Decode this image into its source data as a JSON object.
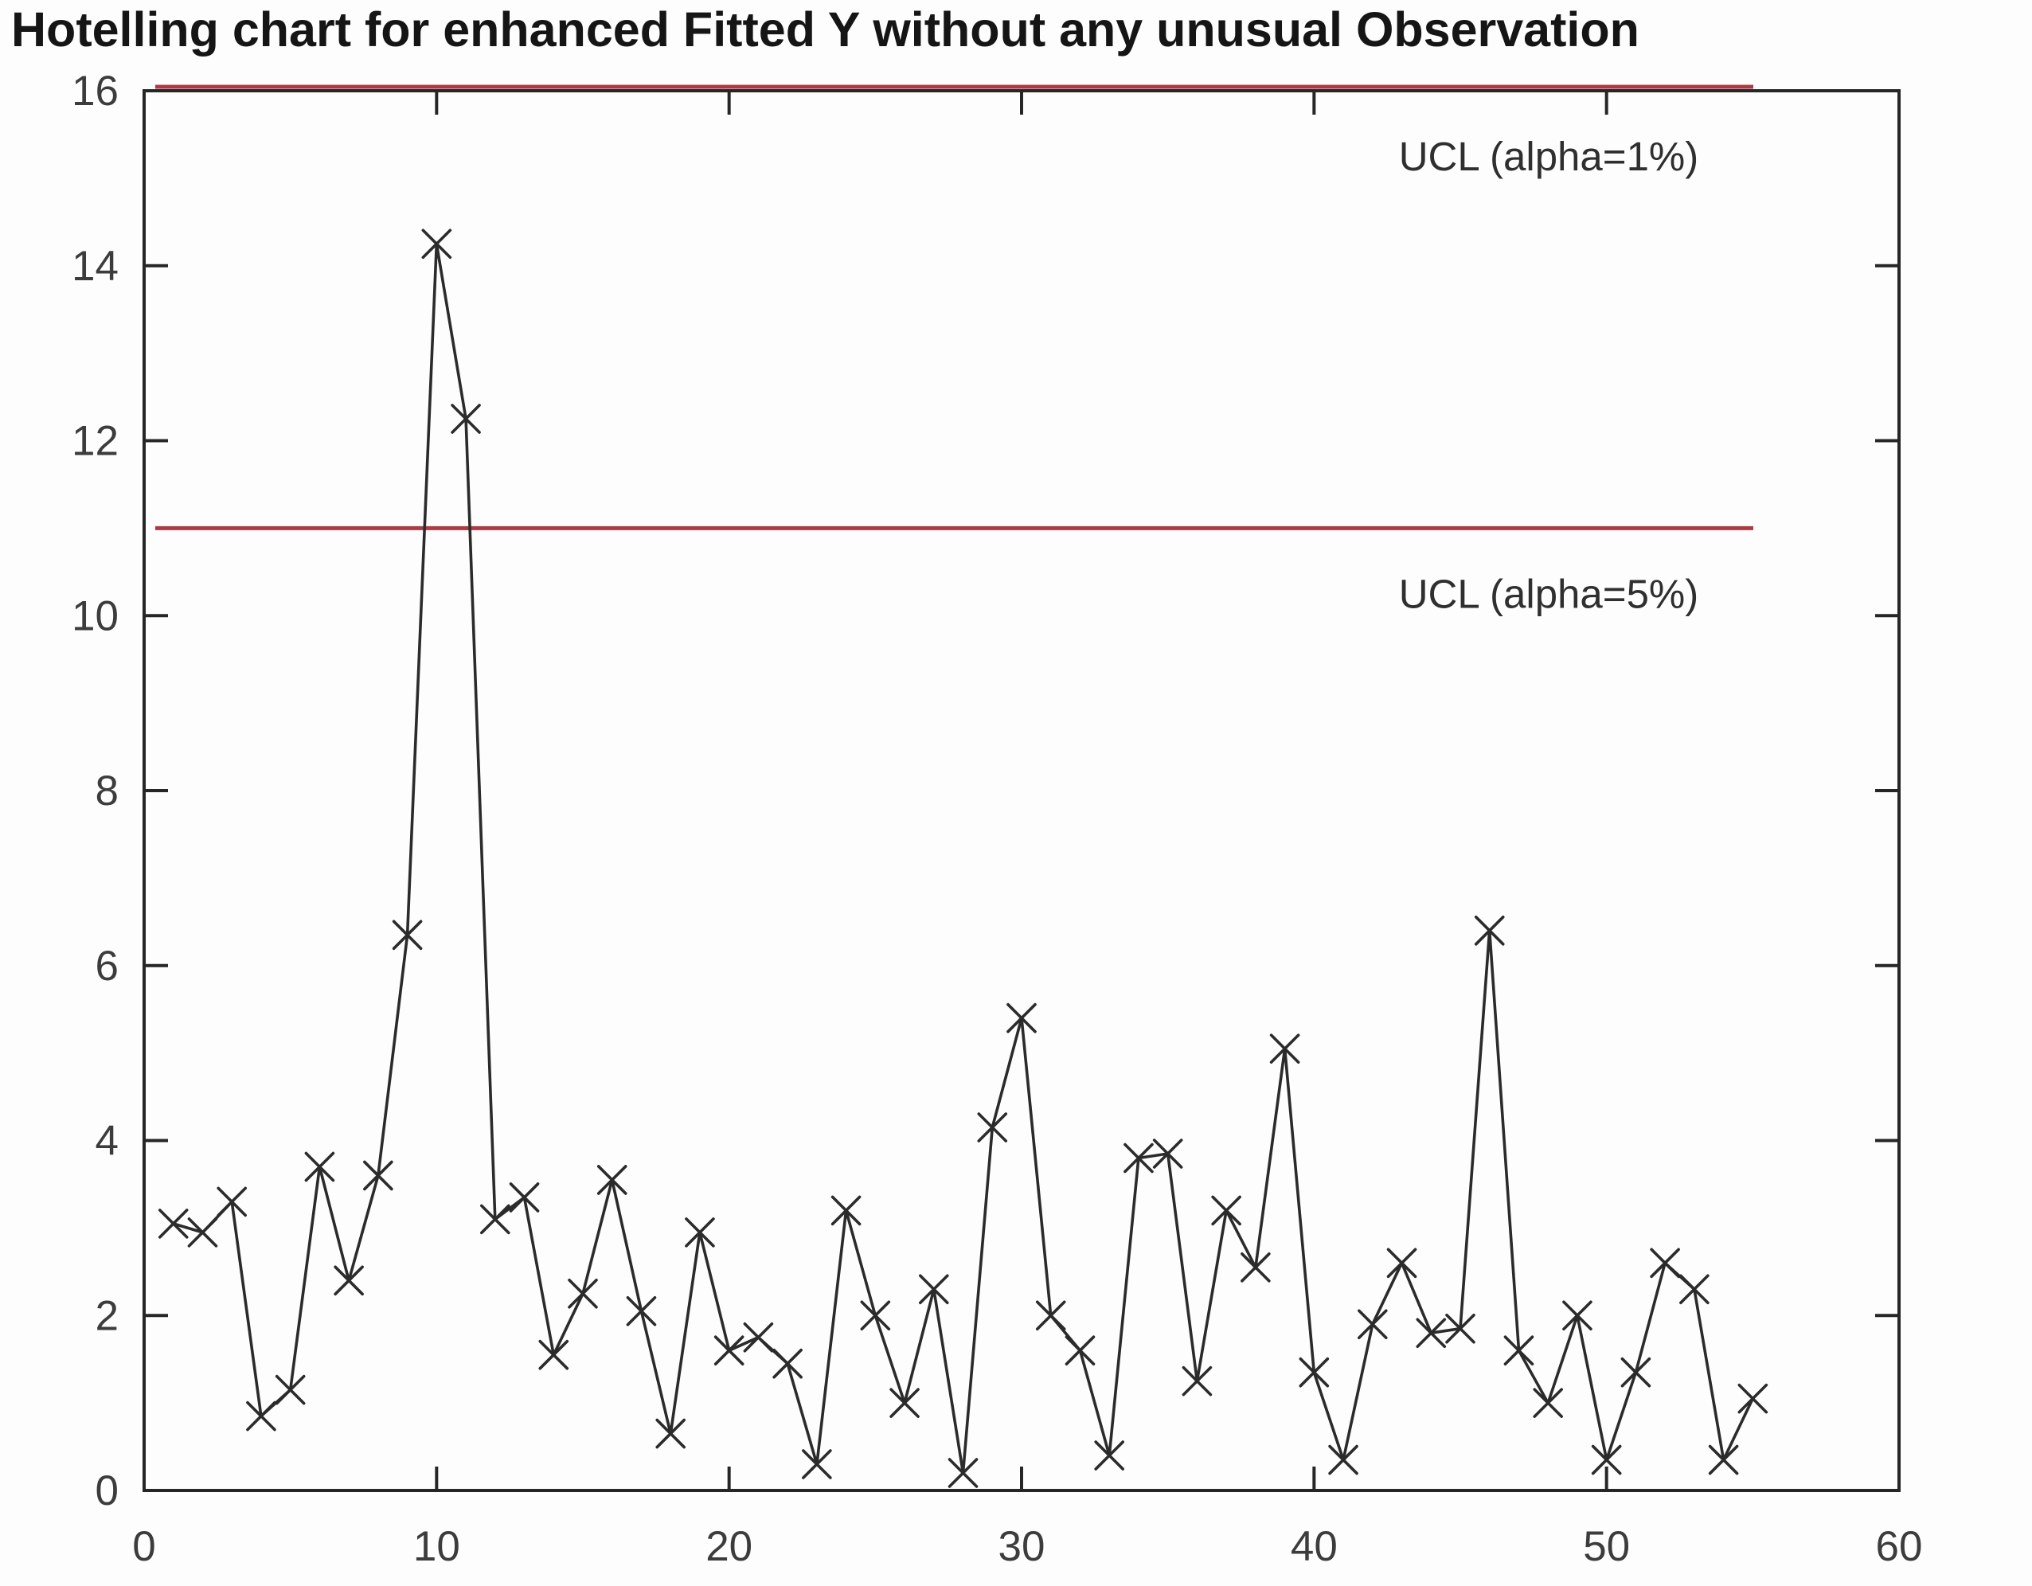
{
  "figure": {
    "background": "#fdfdfd"
  },
  "chart_data": {
    "type": "line",
    "title": "Hotelling chart for enhanced Fitted Y without any unusual Observation",
    "xlabel": "",
    "ylabel": "",
    "xlim": [
      0,
      60
    ],
    "ylim": [
      0,
      16
    ],
    "x_ticks": [
      0,
      10,
      20,
      30,
      40,
      50,
      60
    ],
    "y_ticks": [
      0,
      2,
      4,
      6,
      8,
      10,
      12,
      14,
      16
    ],
    "grid": false,
    "box": true,
    "marker": "x",
    "line_color": "#2b2b2b",
    "marker_color": "#2b2b2b",
    "x_start": 1,
    "x_step": 1,
    "values": [
      3.05,
      2.95,
      3.3,
      0.85,
      1.15,
      3.7,
      2.4,
      3.6,
      6.35,
      14.25,
      12.25,
      3.1,
      3.35,
      1.55,
      2.25,
      3.55,
      2.05,
      0.65,
      2.95,
      1.6,
      1.75,
      1.45,
      0.3,
      3.2,
      2.0,
      1.0,
      2.3,
      0.2,
      4.15,
      5.4,
      2.0,
      1.6,
      0.4,
      3.8,
      3.85,
      1.25,
      3.2,
      2.55,
      5.05,
      1.35,
      0.35,
      1.9,
      2.6,
      1.8,
      1.85,
      6.4,
      1.6,
      1.0,
      2.0,
      0.35,
      1.35,
      2.6,
      2.3,
      0.35,
      1.05
    ],
    "control_limits": [
      {
        "label": "UCL (alpha=1%)",
        "value": 16,
        "color": "#ac3a46"
      },
      {
        "label": "UCL (alpha=5%)",
        "value": 11,
        "color": "#ac3a46"
      }
    ],
    "legend_position": "none"
  }
}
